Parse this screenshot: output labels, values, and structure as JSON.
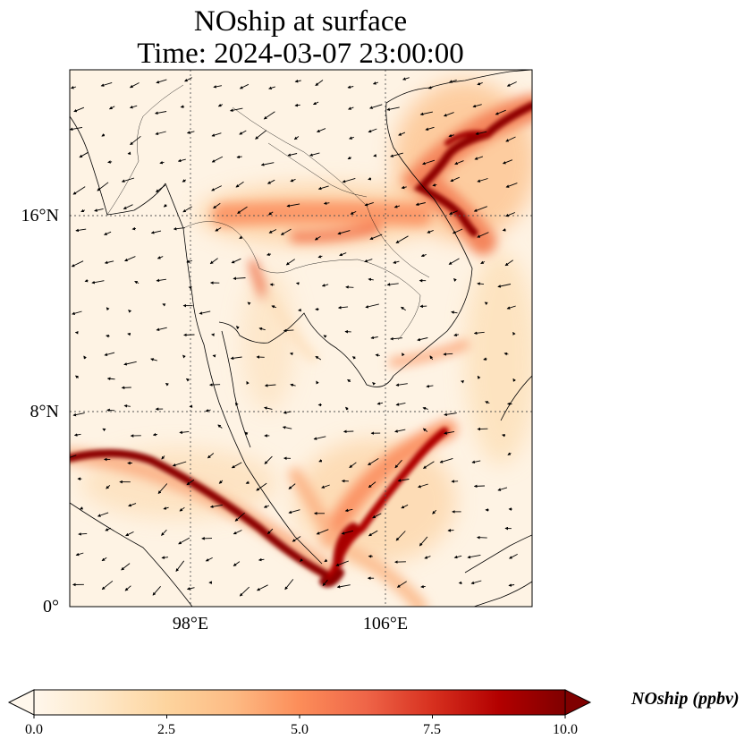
{
  "title": {
    "line1": "NOship at surface",
    "line2": "Time: 2024-03-07 23:00:00"
  },
  "map_data": {
    "type": "geographic-field",
    "variable": "NOship",
    "units": "ppbv",
    "colormap": "OrRd",
    "extent": {
      "lon_min": 93,
      "lon_max": 112,
      "lat_min": 0,
      "lat_max": 22
    },
    "lat_ticks": [
      {
        "value": 16,
        "label": "16°N"
      },
      {
        "value": 8,
        "label": "8°N"
      },
      {
        "value": 0,
        "label": "0°"
      }
    ],
    "lon_ticks": [
      {
        "value": 98,
        "label": "98°E"
      },
      {
        "value": 106,
        "label": "106°E"
      }
    ],
    "gridlines": true,
    "overlay": "wind vectors"
  },
  "colorbar": {
    "label": "NOship (ppbv)",
    "min": 0,
    "max": 10,
    "extend": "both",
    "ticks": [
      {
        "value": 0,
        "label": "0.0"
      },
      {
        "value": 2.5,
        "label": "2.5"
      },
      {
        "value": 5,
        "label": "5.0"
      },
      {
        "value": 7.5,
        "label": "7.5"
      },
      {
        "value": 10,
        "label": "10.0"
      }
    ],
    "colors": [
      "#fff7ec",
      "#fee8c8",
      "#fdd49e",
      "#fdbb84",
      "#fc8d59",
      "#ef6548",
      "#d7301f",
      "#b30000",
      "#7f0000"
    ]
  }
}
